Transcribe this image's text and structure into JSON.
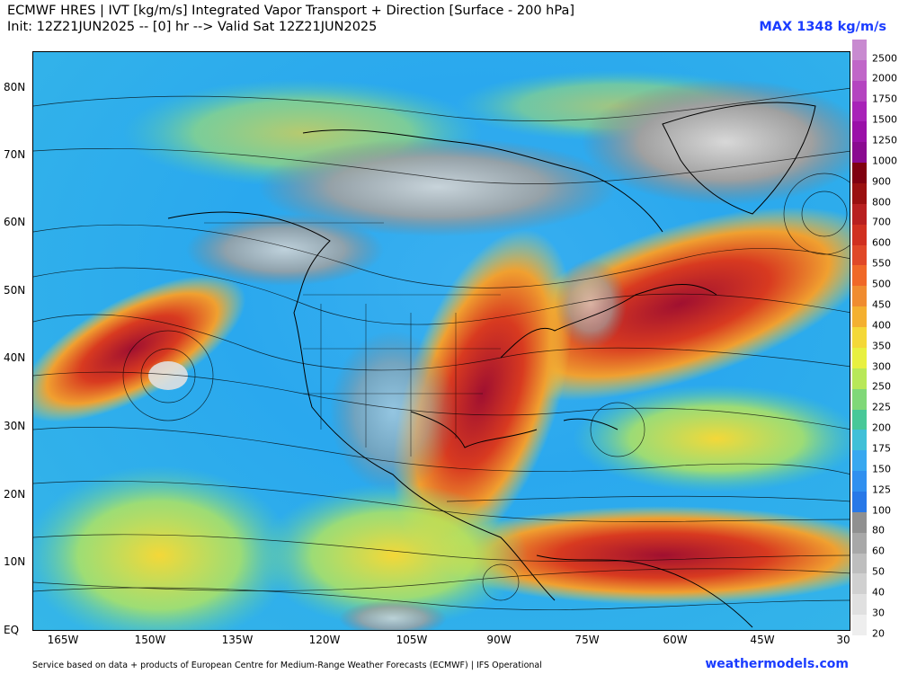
{
  "header": {
    "title": "ECMWF HRES | IVT [kg/m/s] Integrated Vapor Transport + Direction [Surface - 200 hPa]",
    "subtitle": "Init: 12Z21JUN2025 -- [0] hr --> Valid Sat 12Z21JUN2025",
    "max_label": "MAX 1348 kg/m/s"
  },
  "map": {
    "lat_labels": [
      "80N",
      "70N",
      "60N",
      "50N",
      "40N",
      "30N",
      "20N",
      "10N",
      "EQ"
    ],
    "lon_labels": [
      "165W",
      "150W",
      "135W",
      "120W",
      "105W",
      "90W",
      "75W",
      "60W",
      "45W",
      "30"
    ]
  },
  "colorbar": {
    "labels": [
      "2500",
      "2000",
      "1750",
      "1500",
      "1250",
      "1000",
      "900",
      "800",
      "700",
      "600",
      "550",
      "500",
      "450",
      "400",
      "350",
      "300",
      "250",
      "225",
      "200",
      "175",
      "150",
      "125",
      "100",
      "80",
      "60",
      "50",
      "40",
      "30",
      "20"
    ],
    "colors": [
      "#c88ad0",
      "#c066c8",
      "#b444c0",
      "#a822b8",
      "#9a10a8",
      "#8a0a90",
      "#800010",
      "#9a1010",
      "#b82020",
      "#d03020",
      "#e04828",
      "#f06828",
      "#f08c30",
      "#f4b030",
      "#f4d838",
      "#e8f040",
      "#b8e858",
      "#80d878",
      "#48c898",
      "#40c0d8",
      "#38a8f0",
      "#3090f0",
      "#2878e8",
      "#909090",
      "#a8a8a8",
      "#bebebe",
      "#d0d0d0",
      "#e0e0e0",
      "#eeeeee"
    ]
  },
  "footer": {
    "credit": "Service based on data + products of European Centre for Medium-Range Weather Forecasts (ECMWF) | IFS Operational",
    "site": "weathermodels.com"
  }
}
